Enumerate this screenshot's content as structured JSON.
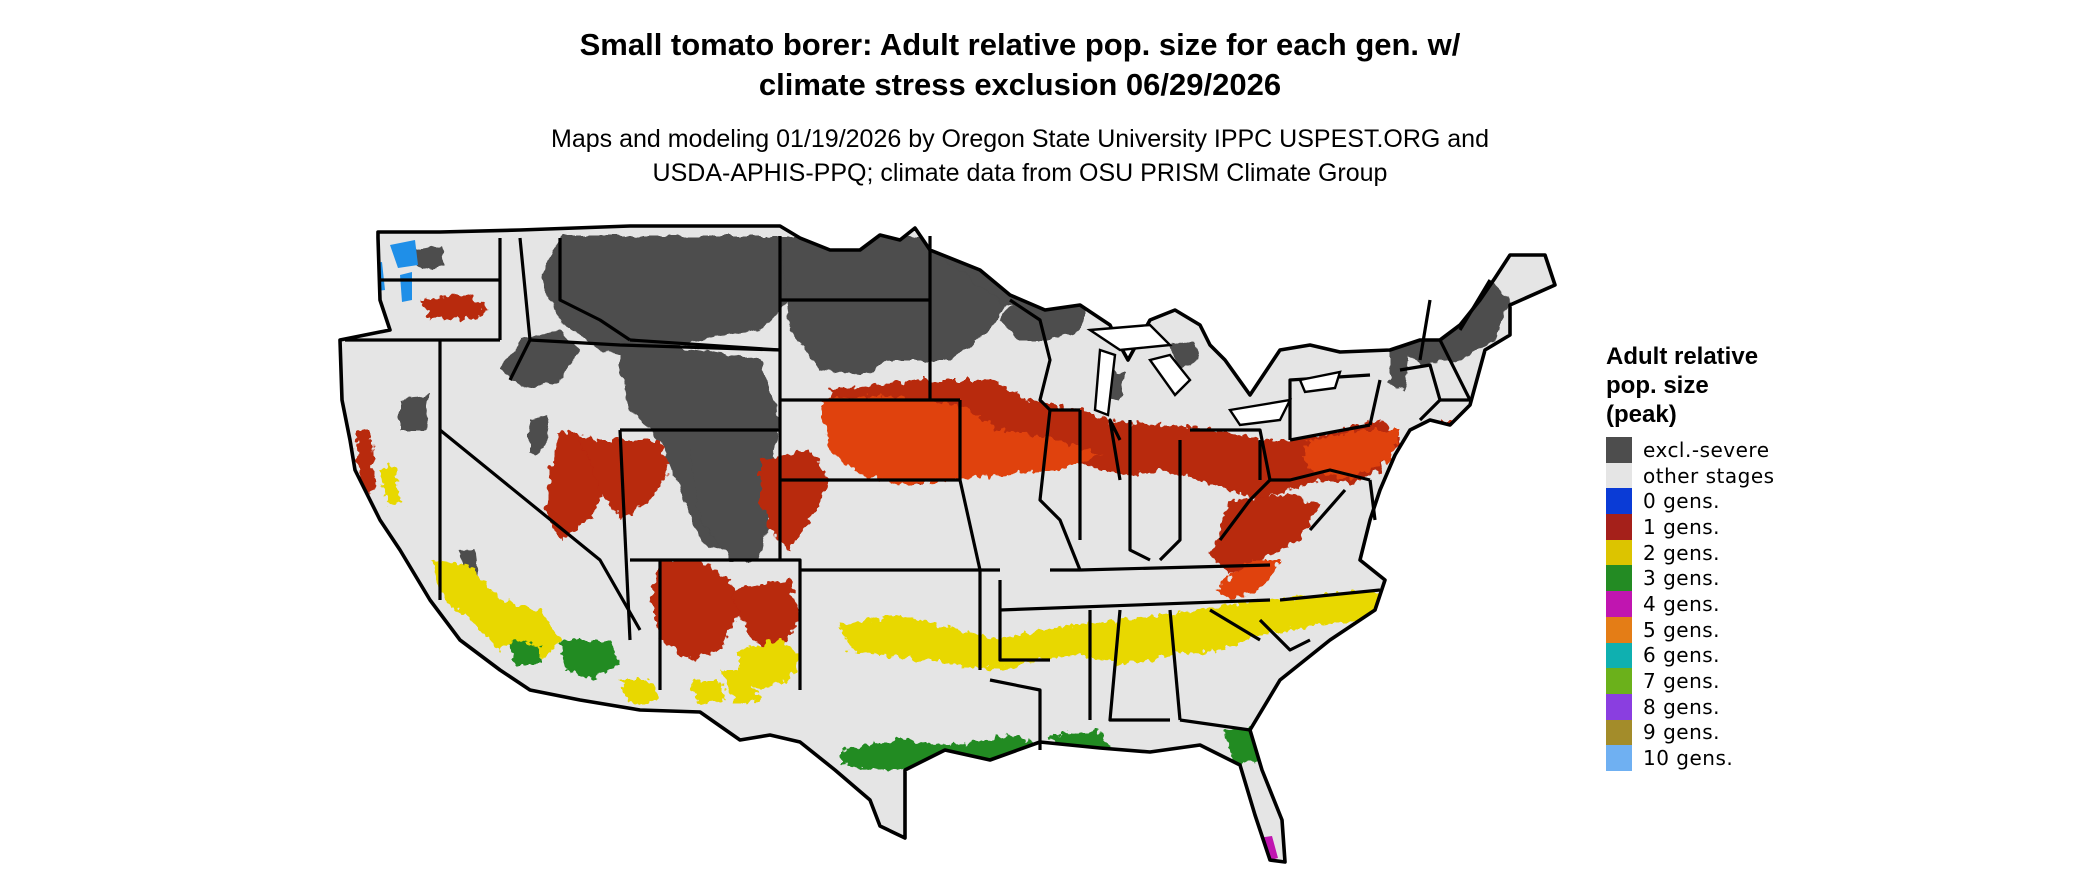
{
  "title": {
    "line1": "Small tomato borer: Adult relative pop. size for each gen. w/",
    "line2": "climate stress exclusion 06/29/2026"
  },
  "subtitle": {
    "line1": "Maps and modeling 01/19/2026 by Oregon State University IPPC USPEST.ORG and",
    "line2": "USDA-APHIS-PPQ; climate data from OSU PRISM Climate Group"
  },
  "legend": {
    "title_line1": "Adult relative",
    "title_line2": "pop. size",
    "title_line3": "(peak)",
    "items": [
      {
        "label": "excl.-severe",
        "color": "#4d4d4d"
      },
      {
        "label": "other stages",
        "color": "#e5e5e5"
      },
      {
        "label": "0 gens.",
        "color": "#0a3bd6"
      },
      {
        "label": "1 gens.",
        "color": "#a5201a"
      },
      {
        "label": "2 gens.",
        "color": "#dcc400"
      },
      {
        "label": "3 gens.",
        "color": "#238b23"
      },
      {
        "label": "4 gens.",
        "color": "#c015b0"
      },
      {
        "label": "5 gens.",
        "color": "#e47d16"
      },
      {
        "label": "6 gens.",
        "color": "#0fb0b0"
      },
      {
        "label": "7 gens.",
        "color": "#6bb11b"
      },
      {
        "label": "8 gens.",
        "color": "#8a3ee0"
      },
      {
        "label": "9 gens.",
        "color": "#a38c2a"
      },
      {
        "label": "10 gens.",
        "color": "#6fb0f2"
      }
    ]
  },
  "map": {
    "background_color": "#e5e5e5",
    "border_color": "#000000",
    "excluded_color": "#4d4d4d",
    "one_gen_color": "#b8290f",
    "one_gen_bright": "#e0430e",
    "two_gen_color": "#e8d800",
    "three_gen_color": "#238b23",
    "four_gen_color": "#c015b0",
    "zero_gen_color": "#1f8fe8"
  }
}
